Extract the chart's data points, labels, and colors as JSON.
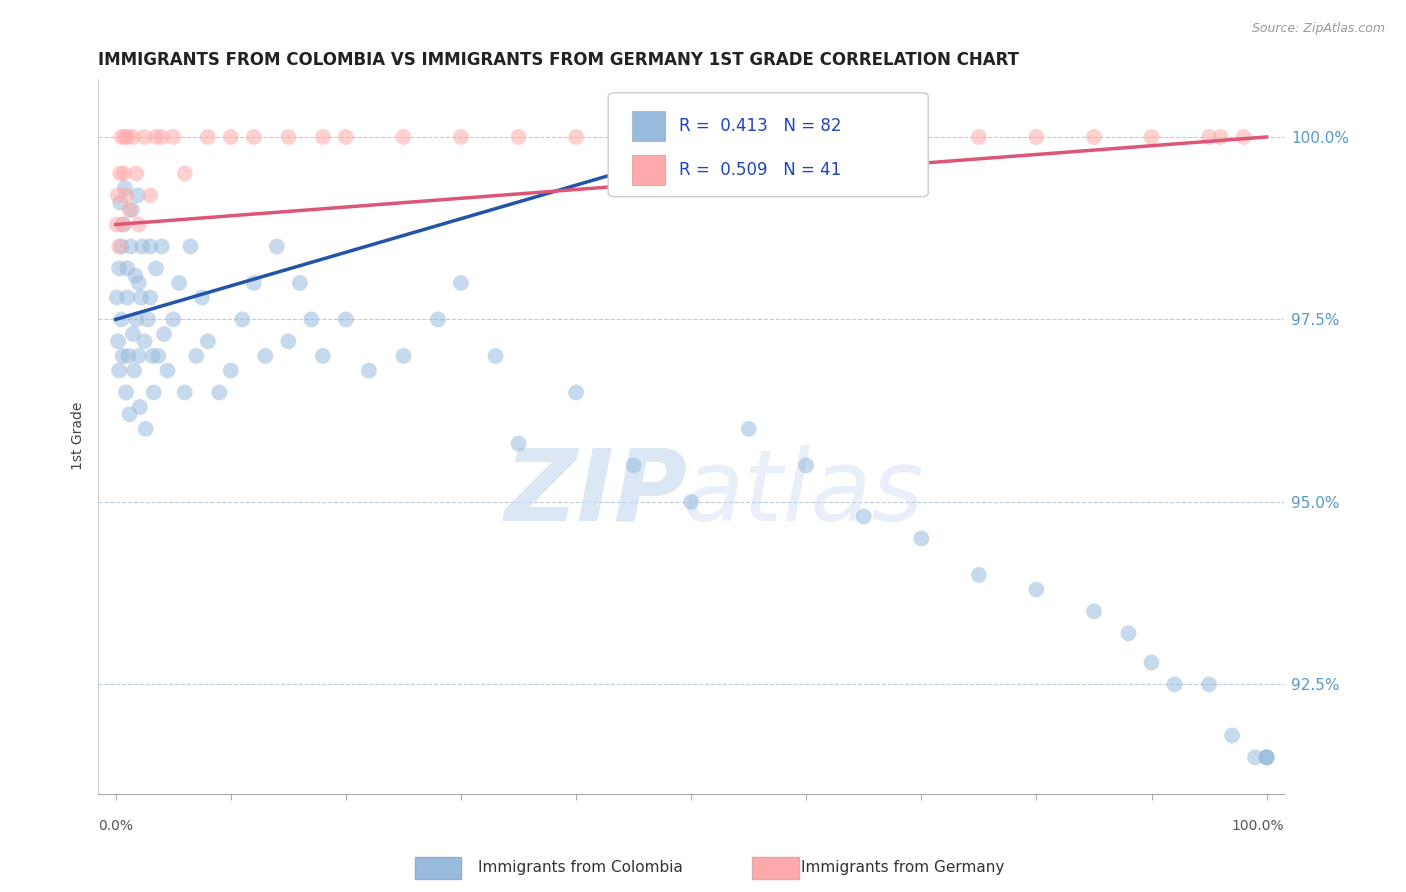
{
  "title": "IMMIGRANTS FROM COLOMBIA VS IMMIGRANTS FROM GERMANY 1ST GRADE CORRELATION CHART",
  "source": "Source: ZipAtlas.com",
  "ylabel": "1st Grade",
  "legend_bottom_left": "Immigrants from Colombia",
  "legend_bottom_right": "Immigrants from Germany",
  "colombia_color": "#99BBDD",
  "germany_color": "#FFAAAA",
  "colombia_line_color": "#2255AA",
  "germany_line_color": "#DD5577",
  "colombia_R": 0.413,
  "colombia_N": 82,
  "germany_R": 0.509,
  "germany_N": 41,
  "ylim_min": 91.0,
  "ylim_max": 100.8,
  "xlim_min": -1.5,
  "xlim_max": 101.5,
  "yticks": [
    92.5,
    95.0,
    97.5,
    100.0
  ],
  "colombia_x": [
    0.1,
    0.2,
    0.3,
    0.3,
    0.4,
    0.5,
    0.5,
    0.6,
    0.7,
    0.8,
    0.9,
    1.0,
    1.0,
    1.1,
    1.2,
    1.3,
    1.4,
    1.5,
    1.6,
    1.7,
    1.8,
    1.9,
    2.0,
    2.0,
    2.1,
    2.2,
    2.3,
    2.5,
    2.6,
    2.8,
    3.0,
    3.0,
    3.2,
    3.3,
    3.5,
    3.7,
    4.0,
    4.2,
    4.5,
    5.0,
    5.5,
    6.0,
    6.5,
    7.0,
    7.5,
    8.0,
    9.0,
    10.0,
    11.0,
    12.0,
    13.0,
    14.0,
    15.0,
    16.0,
    17.0,
    18.0,
    20.0,
    22.0,
    25.0,
    28.0,
    30.0,
    33.0,
    35.0,
    40.0,
    45.0,
    50.0,
    55.0,
    60.0,
    65.0,
    70.0,
    75.0,
    80.0,
    85.0,
    88.0,
    90.0,
    92.0,
    95.0,
    97.0,
    99.0,
    100.0,
    100.0,
    100.0
  ],
  "colombia_y": [
    97.8,
    97.2,
    98.2,
    96.8,
    99.1,
    97.5,
    98.5,
    97.0,
    98.8,
    99.3,
    96.5,
    97.8,
    98.2,
    97.0,
    96.2,
    98.5,
    99.0,
    97.3,
    96.8,
    98.1,
    97.5,
    99.2,
    97.0,
    98.0,
    96.3,
    97.8,
    98.5,
    97.2,
    96.0,
    97.5,
    97.8,
    98.5,
    97.0,
    96.5,
    98.2,
    97.0,
    98.5,
    97.3,
    96.8,
    97.5,
    98.0,
    96.5,
    98.5,
    97.0,
    97.8,
    97.2,
    96.5,
    96.8,
    97.5,
    98.0,
    97.0,
    98.5,
    97.2,
    98.0,
    97.5,
    97.0,
    97.5,
    96.8,
    97.0,
    97.5,
    98.0,
    97.0,
    95.8,
    96.5,
    95.5,
    95.0,
    96.0,
    95.5,
    94.8,
    94.5,
    94.0,
    93.8,
    93.5,
    93.2,
    92.8,
    92.5,
    92.5,
    91.8,
    91.5,
    91.5,
    91.5,
    91.5
  ],
  "germany_x": [
    0.1,
    0.2,
    0.3,
    0.4,
    0.5,
    0.6,
    0.7,
    0.8,
    0.9,
    1.0,
    1.2,
    1.5,
    1.8,
    2.0,
    2.5,
    3.0,
    3.5,
    4.0,
    5.0,
    6.0,
    8.0,
    10.0,
    12.0,
    15.0,
    18.0,
    20.0,
    25.0,
    30.0,
    35.0,
    40.0,
    50.0,
    60.0,
    65.0,
    70.0,
    75.0,
    80.0,
    85.0,
    90.0,
    95.0,
    96.0,
    98.0
  ],
  "germany_y": [
    98.8,
    99.2,
    98.5,
    99.5,
    100.0,
    98.8,
    99.5,
    100.0,
    99.2,
    100.0,
    99.0,
    100.0,
    99.5,
    98.8,
    100.0,
    99.2,
    100.0,
    100.0,
    100.0,
    99.5,
    100.0,
    100.0,
    100.0,
    100.0,
    100.0,
    100.0,
    100.0,
    100.0,
    100.0,
    100.0,
    100.0,
    100.0,
    100.0,
    100.0,
    100.0,
    100.0,
    100.0,
    100.0,
    100.0,
    100.0,
    100.0
  ],
  "colombia_trend_x": [
    0,
    50
  ],
  "colombia_trend_y": [
    97.5,
    99.8
  ],
  "germany_trend_x": [
    0,
    100
  ],
  "germany_trend_y": [
    98.8,
    100.0
  ]
}
